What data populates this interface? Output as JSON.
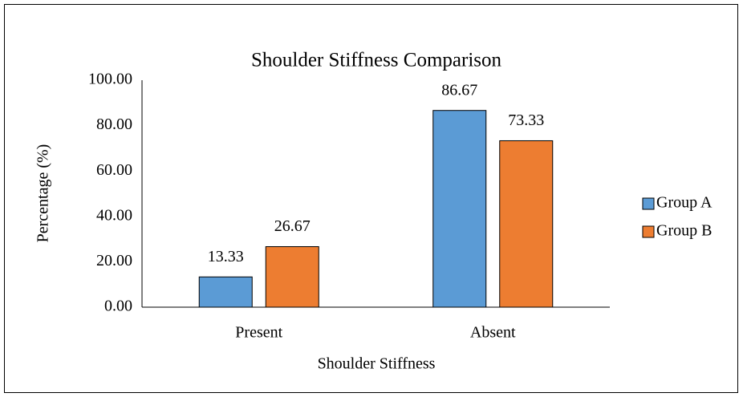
{
  "chart_data": {
    "type": "bar",
    "title": "Shoulder Stiffness Comparison",
    "x_label": "Shoulder Stiffness",
    "y_label": "Percentage (%)",
    "categories": [
      "Present",
      "Absent"
    ],
    "series": [
      {
        "name": "Group A",
        "color": "#5b9bd5",
        "values": [
          13.33,
          86.67
        ]
      },
      {
        "name": "Group B",
        "color": "#ed7d31",
        "values": [
          26.67,
          73.33
        ]
      }
    ],
    "ylim": [
      0,
      100
    ],
    "yticks": [
      {
        "value": 0,
        "label": "0.00"
      },
      {
        "value": 20,
        "label": "20.00"
      },
      {
        "value": 40,
        "label": "40.00"
      },
      {
        "value": 60,
        "label": "60.00"
      },
      {
        "value": 80,
        "label": "80.00"
      },
      {
        "value": 100,
        "label": "100.00"
      }
    ],
    "grid": false,
    "legend": "right"
  }
}
